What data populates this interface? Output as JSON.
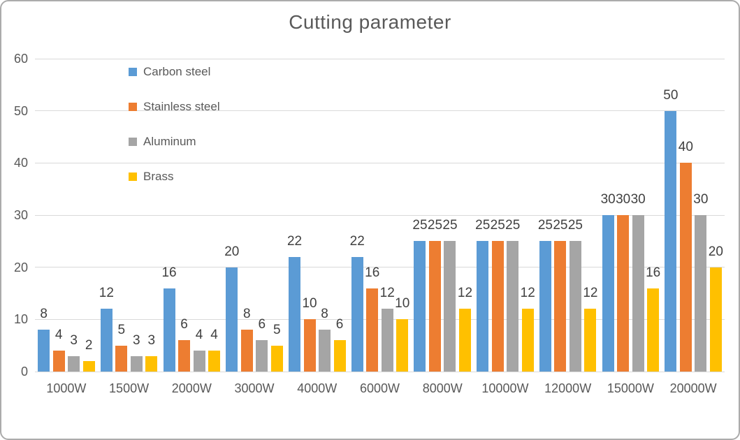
{
  "title": "Cutting parameter",
  "colors": {
    "carbon_steel": "#5B9BD5",
    "stainless_steel": "#ED7D31",
    "aluminum": "#A5A5A5",
    "brass": "#FFC000",
    "gridline": "#D9D9D9",
    "axis_text": "#595959",
    "data_label_text": "#404040",
    "title_text": "#595959",
    "frame_border": "#ABABAB"
  },
  "chart_data": {
    "type": "bar",
    "title": "Cutting parameter",
    "categories": [
      "1000W",
      "1500W",
      "2000W",
      "3000W",
      "4000W",
      "6000W",
      "8000W",
      "10000W",
      "12000W",
      "15000W",
      "20000W"
    ],
    "series": [
      {
        "name": "Carbon steel",
        "color": "#5B9BD5",
        "values": [
          8,
          12,
          16,
          20,
          22,
          22,
          25,
          25,
          25,
          30,
          50
        ]
      },
      {
        "name": "Stainless steel",
        "color": "#ED7D31",
        "values": [
          4,
          5,
          6,
          8,
          10,
          16,
          25,
          25,
          25,
          30,
          40
        ]
      },
      {
        "name": "Aluminum",
        "color": "#A5A5A5",
        "values": [
          3,
          3,
          4,
          6,
          8,
          12,
          25,
          25,
          25,
          30,
          30
        ]
      },
      {
        "name": "Brass",
        "color": "#FFC000",
        "values": [
          2,
          3,
          4,
          5,
          6,
          10,
          12,
          12,
          12,
          16,
          20
        ]
      }
    ],
    "xlabel": "",
    "ylabel": "",
    "ylim": [
      0,
      60
    ],
    "ytick_interval": 10,
    "yticks": [
      0,
      10,
      20,
      30,
      40,
      50,
      60
    ],
    "grid": true,
    "data_labels": true,
    "legend_position": "top-left-vertical"
  }
}
